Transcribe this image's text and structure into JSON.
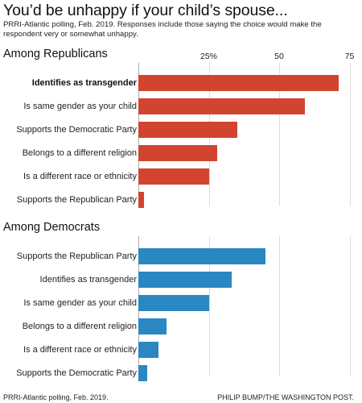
{
  "title": "You’d be unhappy if your child’s spouse...",
  "subtitle": "PRRI-Atlantic polling, Feb. 2019. Responses include those saying the choice would make the respondent very or somewhat unhappy.",
  "footer": {
    "source": "PRRI-Atlantic polling, Feb. 2019.",
    "credit": "PHILIP BUMP/THE WASHINGTON POST."
  },
  "axis": {
    "ticks": [
      "25%",
      "50",
      "75"
    ],
    "tick_values": [
      25,
      50,
      75
    ],
    "xlim": [
      0,
      80
    ]
  },
  "colors": {
    "republicans": "#d14530",
    "democrats": "#2a87c1",
    "gridline": "#dcdcdc"
  },
  "chart_data": [
    {
      "type": "bar",
      "title": "Among Republicans",
      "unit": "%",
      "categories": [
        "Identifies as transgender",
        "Is same gender as your child",
        "Supports the Democratic Party",
        "Belongs to a different religion",
        "Is a different race or ethnicity",
        "Supports the Republican Party"
      ],
      "values": [
        71,
        59,
        35,
        28,
        25,
        2
      ],
      "highlight": "Identifies as transgender",
      "xlim": [
        0,
        80
      ]
    },
    {
      "type": "bar",
      "title": "Among Democrats",
      "unit": "%",
      "categories": [
        "Supports the Republican Party",
        "Identifies as transgender",
        "Is same gender as your child",
        "Belongs to a different religion",
        "Is a different race or ethnicity",
        "Supports the Democratic Party"
      ],
      "values": [
        45,
        33,
        25,
        10,
        7,
        3
      ],
      "xlim": [
        0,
        80
      ]
    }
  ]
}
